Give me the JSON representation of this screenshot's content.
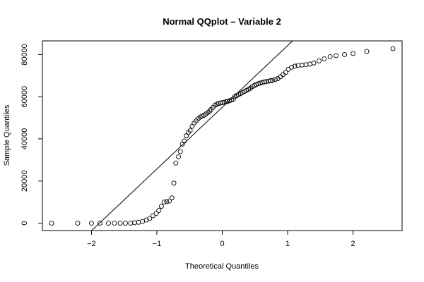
{
  "chart_data": {
    "type": "scatter",
    "title": "Normal QQplot – Variable 2",
    "xlabel": "Theoretical Quantiles",
    "ylabel": "Sample Quantiles",
    "xlim": [
      -2.75,
      2.75
    ],
    "ylim": [
      -3500,
      86500
    ],
    "xticks": [
      -2,
      -1,
      0,
      1,
      2
    ],
    "xtick_labels": [
      "−2",
      "−1",
      "0",
      "1",
      "2"
    ],
    "yticks": [
      0,
      20000,
      40000,
      60000,
      80000
    ],
    "ytick_labels": [
      "0",
      "20000",
      "40000",
      "60000",
      "80000"
    ],
    "grid": false,
    "point_style": "open-circle",
    "reference_line": {
      "intercept": 55000,
      "slope": 29300
    },
    "points": [
      [
        -2.61,
        0
      ],
      [
        -2.21,
        0
      ],
      [
        -2.0,
        0
      ],
      [
        -1.87,
        0
      ],
      [
        -1.74,
        0
      ],
      [
        -1.65,
        0
      ],
      [
        -1.56,
        0
      ],
      [
        -1.48,
        0
      ],
      [
        -1.4,
        0
      ],
      [
        -1.34,
        200
      ],
      [
        -1.28,
        400
      ],
      [
        -1.22,
        800
      ],
      [
        -1.16,
        1500
      ],
      [
        -1.11,
        2200
      ],
      [
        -1.06,
        3500
      ],
      [
        -1.01,
        4600
      ],
      [
        -0.97,
        6000
      ],
      [
        -0.93,
        8000
      ],
      [
        -0.89,
        10000
      ],
      [
        -0.85,
        10200
      ],
      [
        -0.81,
        10500
      ],
      [
        -0.77,
        12000
      ],
      [
        -0.74,
        19000
      ],
      [
        -0.71,
        28500
      ],
      [
        -0.67,
        31500
      ],
      [
        -0.64,
        34000
      ],
      [
        -0.61,
        37500
      ],
      [
        -0.58,
        39000
      ],
      [
        -0.55,
        41500
      ],
      [
        -0.52,
        43000
      ],
      [
        -0.49,
        44000
      ],
      [
        -0.46,
        46000
      ],
      [
        -0.43,
        47500
      ],
      [
        -0.4,
        48500
      ],
      [
        -0.37,
        49500
      ],
      [
        -0.34,
        50300
      ],
      [
        -0.31,
        50800
      ],
      [
        -0.28,
        51200
      ],
      [
        -0.25,
        51800
      ],
      [
        -0.22,
        52500
      ],
      [
        -0.19,
        53200
      ],
      [
        -0.17,
        54000
      ],
      [
        -0.14,
        55000
      ],
      [
        -0.11,
        56000
      ],
      [
        -0.08,
        56500
      ],
      [
        -0.06,
        56800
      ],
      [
        -0.03,
        57000
      ],
      [
        0.0,
        57200
      ],
      [
        0.03,
        57400
      ],
      [
        0.06,
        57600
      ],
      [
        0.08,
        57800
      ],
      [
        0.11,
        58100
      ],
      [
        0.14,
        58500
      ],
      [
        0.17,
        58800
      ],
      [
        0.19,
        60000
      ],
      [
        0.22,
        60500
      ],
      [
        0.25,
        61000
      ],
      [
        0.28,
        61500
      ],
      [
        0.31,
        62000
      ],
      [
        0.34,
        62500
      ],
      [
        0.37,
        63000
      ],
      [
        0.4,
        63500
      ],
      [
        0.43,
        64000
      ],
      [
        0.46,
        64800
      ],
      [
        0.49,
        65300
      ],
      [
        0.52,
        65800
      ],
      [
        0.55,
        66200
      ],
      [
        0.58,
        66500
      ],
      [
        0.61,
        66800
      ],
      [
        0.64,
        67000
      ],
      [
        0.67,
        67200
      ],
      [
        0.71,
        67400
      ],
      [
        0.74,
        67600
      ],
      [
        0.77,
        67800
      ],
      [
        0.81,
        68200
      ],
      [
        0.85,
        68600
      ],
      [
        0.89,
        69500
      ],
      [
        0.93,
        70500
      ],
      [
        0.97,
        71500
      ],
      [
        1.01,
        73000
      ],
      [
        1.06,
        74000
      ],
      [
        1.11,
        74500
      ],
      [
        1.16,
        74800
      ],
      [
        1.22,
        75000
      ],
      [
        1.28,
        75200
      ],
      [
        1.34,
        75500
      ],
      [
        1.4,
        76000
      ],
      [
        1.48,
        77000
      ],
      [
        1.56,
        78000
      ],
      [
        1.65,
        79000
      ],
      [
        1.74,
        79500
      ],
      [
        1.87,
        80000
      ],
      [
        2.0,
        80500
      ],
      [
        2.21,
        81500
      ],
      [
        2.61,
        82800
      ]
    ]
  }
}
